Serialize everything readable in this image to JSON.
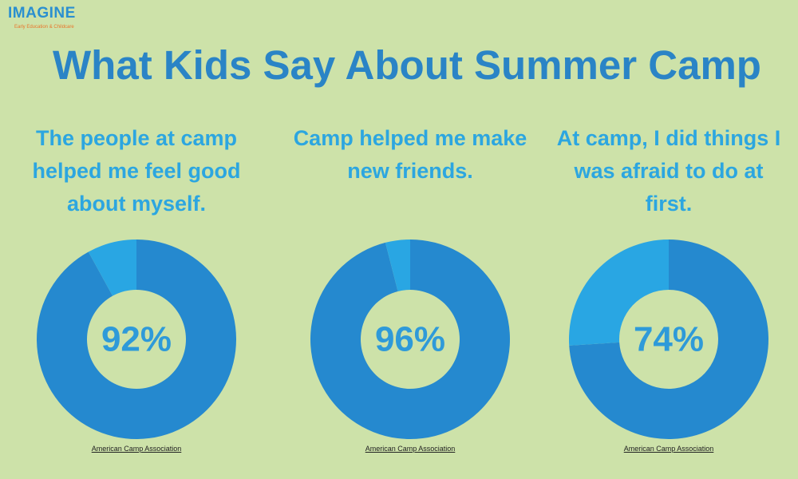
{
  "header": {
    "logo": "IMAGINE",
    "tagline": "Early Education & Childcare",
    "title": "What Kids Say About Summer Camp"
  },
  "chart_data": [
    {
      "type": "donut",
      "title": "The people at camp helped me feel good about myself.",
      "values": [
        92,
        8
      ],
      "value_labels": [
        "92%",
        null
      ],
      "colors": [
        "#2589cf",
        "#29a6e3"
      ],
      "source": "American Camp Association"
    },
    {
      "type": "donut",
      "title": "Camp helped me make new friends.",
      "values": [
        96,
        4
      ],
      "value_labels": [
        "96%",
        null
      ],
      "colors": [
        "#2589cf",
        "#29a6e3"
      ],
      "source": "American Camp Association"
    },
    {
      "type": "donut",
      "title": "At camp, I did things I was afraid to do at first.",
      "values": [
        74,
        26
      ],
      "value_labels": [
        "74%",
        null
      ],
      "colors": [
        "#2589cf",
        "#29a6e3"
      ],
      "source": "American Camp Association"
    }
  ]
}
